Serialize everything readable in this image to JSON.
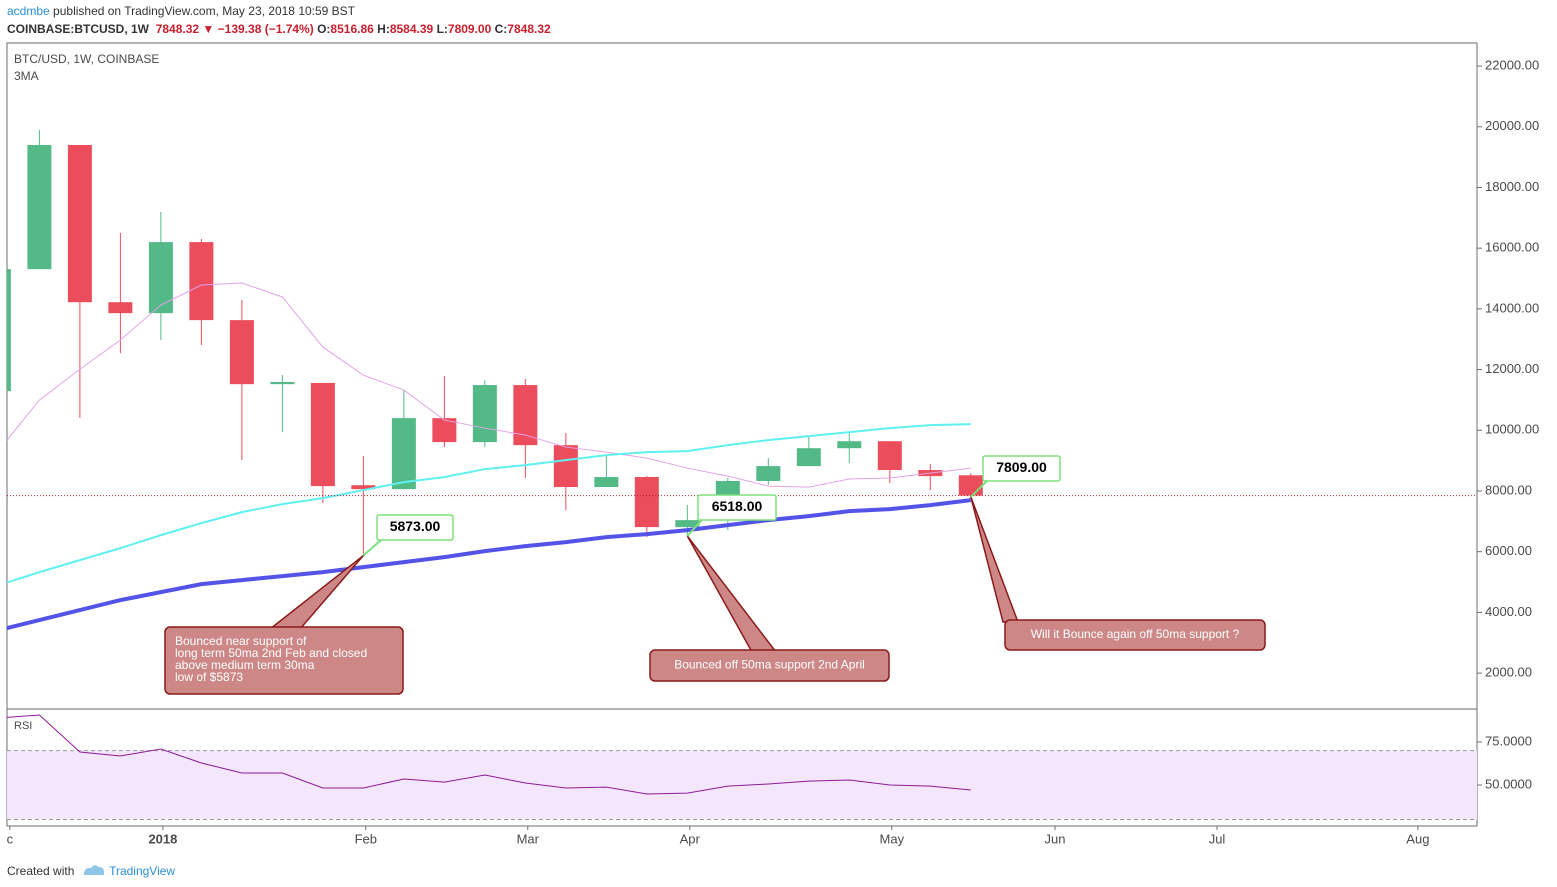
{
  "header": {
    "author": "acdmbe",
    "published": "published on TradingView.com, May 23, 2018 10:59 BST",
    "symbol": "COINBASE:BTCUSD, 1W",
    "last": "7848.32",
    "change_arrow": "▼",
    "change": "−139.38 (−1.74%)",
    "ohlc": [
      {
        "key": "O:",
        "value": "8516.86"
      },
      {
        "key": "H:",
        "value": "8584.39"
      },
      {
        "key": "L:",
        "value": "7809.00"
      },
      {
        "key": "C:",
        "value": "7848.32"
      }
    ]
  },
  "footer": {
    "prefix": "Created with",
    "brand": "TradingView"
  },
  "chart_data": [
    {
      "type": "candlestick",
      "title": "BTC/USD, 1W, COINBASE",
      "up_color": "#53b987",
      "down_color": "#eb4d5c",
      "x": [
        0,
        1,
        2,
        3,
        4,
        5,
        6,
        7,
        8,
        9,
        10,
        11,
        12,
        13,
        14,
        15,
        16,
        17,
        18,
        19,
        20,
        21,
        22,
        23,
        24
      ],
      "open": [
        11290,
        15310,
        19400,
        14220,
        13860,
        16200,
        13630,
        11520,
        11560,
        8190,
        8060,
        10400,
        9610,
        11490,
        9510,
        8130,
        8460,
        6810,
        7040,
        8330,
        8820,
        9410,
        9640,
        8690,
        8516.86
      ],
      "high": [
        15310,
        19890,
        19400,
        16500,
        17190,
        16300,
        14290,
        11820,
        11560,
        9150,
        11320,
        11790,
        11650,
        11690,
        9910,
        9150,
        8500,
        7540,
        8430,
        9080,
        9810,
        9940,
        9640,
        8890,
        8584.39
      ],
      "low": [
        11290,
        15310,
        10400,
        12540,
        12970,
        12810,
        9020,
        9940,
        7600,
        5873,
        8060,
        9450,
        9450,
        8430,
        7370,
        8130,
        6480,
        6518,
        6710,
        8200,
        8820,
        8920,
        8260,
        8030,
        7809
      ],
      "close": [
        15310,
        19400,
        14220,
        13860,
        16200,
        13630,
        11520,
        11590,
        8160,
        8060,
        10400,
        9610,
        11490,
        9510,
        8130,
        8460,
        6810,
        7040,
        8330,
        8820,
        9410,
        9640,
        8690,
        8490,
        7848.32
      ],
      "series": [
        {
          "name": "3MA",
          "color": "#e3a2ea",
          "width": 1,
          "values": [
            9347,
            10994,
            12010,
            12975,
            14128,
            14787,
            14853,
            14392,
            12741,
            11819,
            11325,
            10336,
            10073,
            9842,
            9447,
            9282,
            9084,
            8755,
            8491,
            8162,
            8129,
            8393,
            8426,
            8590,
            8755
          ]
        },
        {
          "color": "#5ff0f0",
          "width": 2,
          "values": [
            4899,
            5327,
            5722,
            6118,
            6546,
            6942,
            7304,
            7568,
            7766,
            8030,
            8293,
            8458,
            8722,
            8853,
            9018,
            9183,
            9282,
            9314,
            9512,
            9677,
            9809,
            9941,
            10073,
            10171,
            10204
          ]
        },
        {
          "color": "#5353e8",
          "width": 4,
          "values": [
            3416,
            3746,
            4075,
            4405,
            4668,
            4932,
            5064,
            5195,
            5327,
            5492,
            5657,
            5822,
            6019,
            6184,
            6316,
            6481,
            6579,
            6711,
            6876,
            7041,
            7172,
            7337,
            7403,
            7535,
            7700
          ]
        }
      ],
      "last_price_line": true,
      "last_price_color": "#b0202a",
      "grid": false,
      "xlim": [
        0.2,
        36.5
      ],
      "xticks": [
        {
          "value": 0.27,
          "label": "c"
        },
        {
          "value": 4.05,
          "label": "2018"
        },
        {
          "value": 9.06,
          "label": "Feb"
        },
        {
          "value": 13.06,
          "label": "Mar"
        },
        {
          "value": 17.06,
          "label": "Apr"
        },
        {
          "value": 22.05,
          "label": "May"
        },
        {
          "value": 26.08,
          "label": "Jun"
        },
        {
          "value": 30.08,
          "label": "Jul"
        },
        {
          "value": 35.04,
          "label": "Aug"
        }
      ],
      "ylim": [
        850,
        22760
      ],
      "yticks": [
        {
          "value": 2000,
          "label": "2000.00"
        },
        {
          "value": 4000,
          "label": "4000.00"
        },
        {
          "value": 6000,
          "label": "6000.00"
        },
        {
          "value": 8000,
          "label": "8000.00"
        },
        {
          "value": 10000,
          "label": "10000.00"
        },
        {
          "value": 12000,
          "label": "12000.00"
        },
        {
          "value": 14000,
          "label": "14000.00"
        },
        {
          "value": 16000,
          "label": "16000.00"
        },
        {
          "value": 18000,
          "label": "18000.00"
        },
        {
          "value": 20000,
          "label": "20000.00"
        },
        {
          "value": 22000,
          "label": "22000.00"
        }
      ],
      "annotations": [
        {
          "x": 9,
          "value": 5873,
          "label": "5873.00",
          "note": [
            "Bounced near support of",
            "long term 50ma 2nd Feb and closed",
            "above medium term 30ma",
            "low of $5873"
          ]
        },
        {
          "x": 17,
          "value": 6518,
          "label": "6518.00",
          "note": [
            "Bounced off 50ma support 2nd April"
          ]
        },
        {
          "x": 24,
          "value": 7809,
          "label": "7809.00",
          "note": [
            "Will it Bounce again off 50ma support ?"
          ]
        }
      ]
    },
    {
      "type": "line",
      "title": "RSI",
      "series": [
        {
          "color": "#8e1a99",
          "values": [
            89.0,
            90.7,
            69.2,
            66.9,
            70.9,
            62.8,
            57.0,
            57.0,
            48.3,
            48.3,
            53.5,
            51.7,
            55.8,
            51.2,
            48.3,
            48.8,
            44.8,
            45.3,
            49.4,
            50.6,
            52.3,
            52.9,
            50.0,
            49.4,
            47.1
          ]
        }
      ],
      "band": [
        30,
        70
      ],
      "band_color": "#f4e6fc",
      "ylim": [
        26.2,
        93.6
      ],
      "yticks": [
        {
          "value": 50,
          "label": "50.0000"
        },
        {
          "value": 75,
          "label": "75.0000"
        }
      ]
    }
  ]
}
